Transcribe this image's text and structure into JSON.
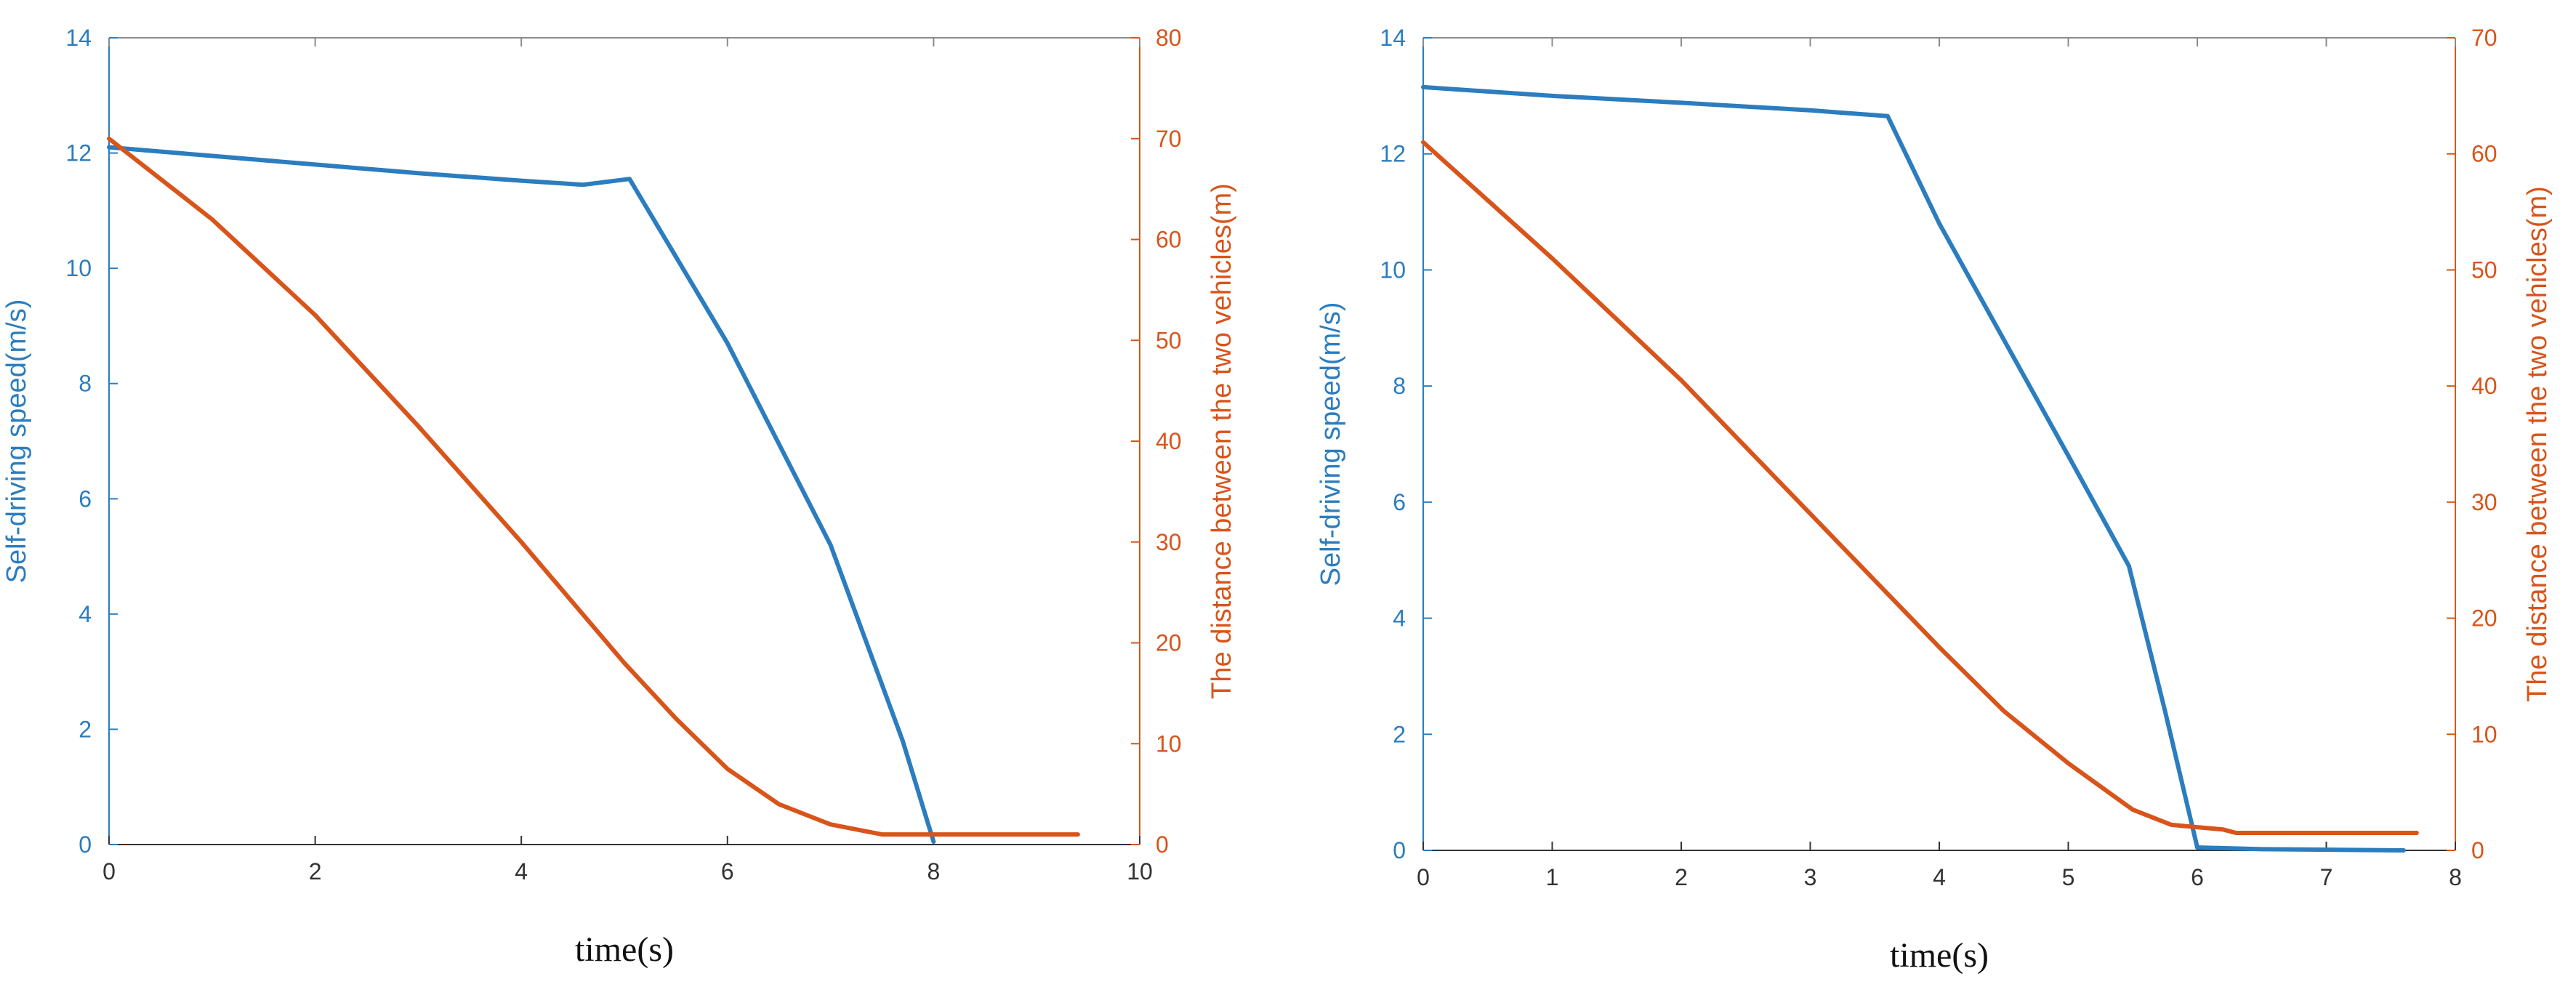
{
  "colors": {
    "speed": "#2b7dbf",
    "distance": "#d9541a",
    "axis": "#333333",
    "frame": "#8c8c8c"
  },
  "chart_data": [
    {
      "type": "line",
      "title": "",
      "xlabel": "time(s)",
      "xlim": [
        0,
        10
      ],
      "xticks": [
        "0",
        "2",
        "4",
        "6",
        "8",
        "10"
      ],
      "ylabel_left": "Self-driving speed(m/s)",
      "ylim_left": [
        0,
        14
      ],
      "yticks_left": [
        "0",
        "2",
        "4",
        "6",
        "8",
        "10",
        "12",
        "14"
      ],
      "ylabel_right": "The distance between the two vehicles(m)",
      "ylim_right": [
        0,
        80
      ],
      "yticks_right": [
        "0",
        "10",
        "20",
        "30",
        "40",
        "50",
        "60",
        "70",
        "80"
      ],
      "grid": false,
      "series": [
        {
          "axis": "left",
          "color_key": "speed",
          "points": [
            [
              0,
              12.1
            ],
            [
              1,
              11.95
            ],
            [
              2,
              11.8
            ],
            [
              3,
              11.65
            ],
            [
              4,
              11.52
            ],
            [
              4.6,
              11.45
            ],
            [
              5.05,
              11.55
            ],
            [
              6,
              8.7
            ],
            [
              7,
              5.2
            ],
            [
              7.7,
              1.8
            ],
            [
              8,
              0.05
            ]
          ]
        },
        {
          "axis": "right",
          "color_key": "distance",
          "points": [
            [
              0,
              70
            ],
            [
              1,
              62
            ],
            [
              2,
              52.5
            ],
            [
              3,
              41.5
            ],
            [
              4,
              30
            ],
            [
              5,
              18
            ],
            [
              5.5,
              12.5
            ],
            [
              6,
              7.5
            ],
            [
              6.5,
              4
            ],
            [
              7,
              2
            ],
            [
              7.5,
              1
            ],
            [
              8,
              1
            ],
            [
              9.4,
              1
            ]
          ]
        }
      ]
    },
    {
      "type": "line",
      "title": "",
      "xlabel": "time(s)",
      "xlim": [
        0,
        8
      ],
      "xticks": [
        "0",
        "1",
        "2",
        "3",
        "4",
        "5",
        "6",
        "7",
        "8"
      ],
      "ylabel_left": "Self-driving speed(m/s)",
      "ylim_left": [
        0,
        14
      ],
      "yticks_left": [
        "0",
        "2",
        "4",
        "6",
        "8",
        "10",
        "12",
        "14"
      ],
      "ylabel_right": "The distance between the two vehicles(m)",
      "ylim_right": [
        0,
        70
      ],
      "yticks_right": [
        "0",
        "10",
        "20",
        "30",
        "40",
        "50",
        "60",
        "70"
      ],
      "grid": false,
      "series": [
        {
          "axis": "left",
          "color_key": "speed",
          "points": [
            [
              0,
              13.15
            ],
            [
              1,
              13.0
            ],
            [
              2,
              12.88
            ],
            [
              3,
              12.75
            ],
            [
              3.6,
              12.65
            ],
            [
              4,
              10.8
            ],
            [
              5,
              6.8
            ],
            [
              5.47,
              4.9
            ],
            [
              5.75,
              2.4
            ],
            [
              6,
              0.05
            ],
            [
              6.5,
              0.02
            ],
            [
              7.6,
              0
            ]
          ]
        },
        {
          "axis": "right",
          "color_key": "distance",
          "points": [
            [
              0,
              61
            ],
            [
              1,
              51
            ],
            [
              2,
              40.5
            ],
            [
              3,
              29
            ],
            [
              4,
              17.5
            ],
            [
              4.5,
              12
            ],
            [
              5,
              7.5
            ],
            [
              5.5,
              3.5
            ],
            [
              5.8,
              2.2
            ],
            [
              6,
              2
            ],
            [
              6.2,
              1.8
            ],
            [
              6.3,
              1.5
            ],
            [
              7.7,
              1.5
            ]
          ]
        }
      ]
    }
  ]
}
